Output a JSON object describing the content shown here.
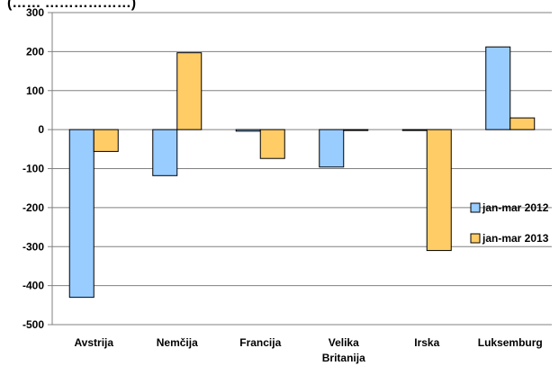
{
  "chart_data": {
    "type": "bar",
    "title": "(…… ………………)",
    "categories": [
      "Avstrija",
      "Nemčija",
      "Francija",
      "Velika Britanija",
      "Irska",
      "Luksemburg"
    ],
    "series": [
      {
        "name": "jan-mar 2012",
        "values": [
          -430,
          -118,
          -4,
          -96,
          -2,
          212
        ],
        "color": "#99ccff"
      },
      {
        "name": "jan-mar 2013",
        "values": [
          -56,
          197,
          -74,
          -2,
          -310,
          30
        ],
        "color": "#ffcc66"
      }
    ],
    "ylim": [
      -500,
      300
    ],
    "yticks": [
      300,
      200,
      100,
      0,
      -100,
      -200,
      -300,
      -400,
      -500
    ],
    "grid": true,
    "legend_position": "right"
  }
}
